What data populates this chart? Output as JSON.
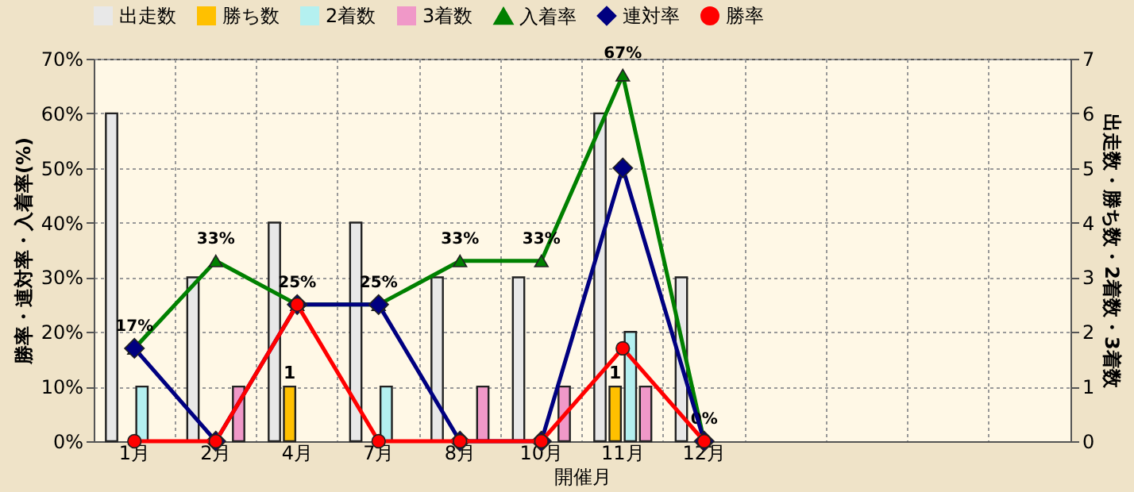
{
  "chart_data": {
    "type": "bar",
    "xlabel": "開催月",
    "ylabel": "勝率・連対率・入着率(%)",
    "y2label": "出走数・勝ち数・2着数・3着数",
    "categories": [
      "1月",
      "2月",
      "4月",
      "7月",
      "8月",
      "10月",
      "11月",
      "12月",
      null,
      null,
      null,
      null
    ],
    "series": [
      {
        "name": "出走数",
        "axis": "y2",
        "color": "#e8e8e8",
        "values": [
          6,
          3,
          4,
          4,
          3,
          3,
          6,
          3,
          null,
          null,
          null,
          null
        ]
      },
      {
        "name": "勝ち数",
        "axis": "y2",
        "color": "#ffc000",
        "values": [
          0,
          0,
          1,
          0,
          0,
          0,
          1,
          0,
          null,
          null,
          null,
          null
        ],
        "value_labels": [
          null,
          null,
          "1",
          null,
          null,
          null,
          "1",
          null,
          null,
          null,
          null,
          null
        ]
      },
      {
        "name": "2着数",
        "axis": "y2",
        "color": "#b4f0f0",
        "values": [
          1,
          0,
          0,
          1,
          0,
          0,
          2,
          0,
          null,
          null,
          null,
          null
        ]
      },
      {
        "name": "3着数",
        "axis": "y2",
        "color": "#f098c8",
        "values": [
          0,
          1,
          0,
          0,
          1,
          1,
          1,
          0,
          null,
          null,
          null,
          null
        ]
      },
      {
        "name": "入着率",
        "type": "line",
        "axis": "y",
        "color": "#008000",
        "marker": "triangle",
        "values": [
          17,
          33,
          25,
          25,
          33,
          33,
          67,
          0,
          null,
          null,
          null,
          null
        ],
        "value_labels": [
          "17%",
          "33%",
          "25%",
          "25%",
          "33%",
          "33%",
          "67%",
          "0%",
          null,
          null,
          null,
          null
        ]
      },
      {
        "name": "連対率",
        "type": "line",
        "axis": "y",
        "color": "#000080",
        "marker": "diamond",
        "values": [
          17,
          0,
          25,
          25,
          0,
          0,
          50,
          0,
          null,
          null,
          null,
          null
        ]
      },
      {
        "name": "勝率",
        "type": "line",
        "axis": "y",
        "color": "#ff0000",
        "marker": "circle",
        "values": [
          0,
          0,
          25,
          0,
          0,
          0,
          17,
          0,
          null,
          null,
          null,
          null
        ]
      }
    ],
    "ylim": [
      0,
      70
    ],
    "yticks": [
      {
        "value": 0,
        "label": "0%"
      },
      {
        "value": 10,
        "label": "10%"
      },
      {
        "value": 20,
        "label": "20%"
      },
      {
        "value": 30,
        "label": "30%"
      },
      {
        "value": 40,
        "label": "40%"
      },
      {
        "value": 50,
        "label": "50%"
      },
      {
        "value": 60,
        "label": "60%"
      },
      {
        "value": 70,
        "label": "70%"
      }
    ],
    "y2lim": [
      0,
      7
    ],
    "y2ticks": [
      0,
      1,
      2,
      3,
      4,
      5,
      6,
      7
    ],
    "grid": true,
    "legend": "top"
  }
}
